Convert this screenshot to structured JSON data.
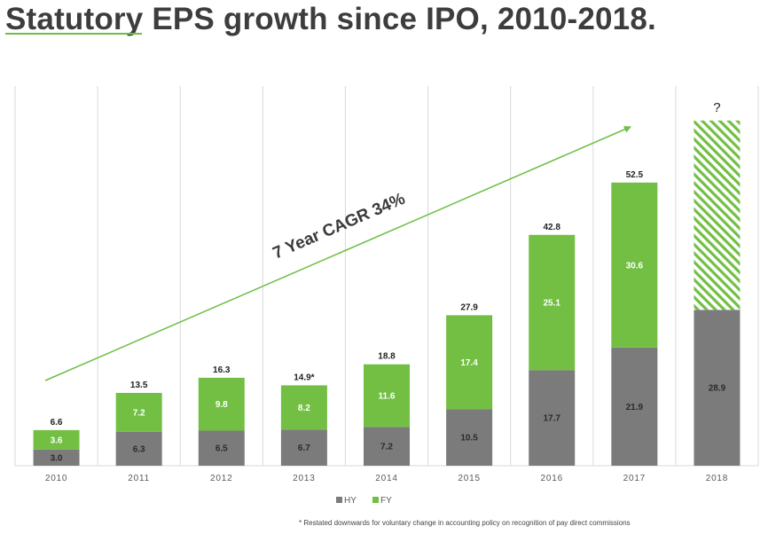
{
  "page": {
    "title": "Statutory EPS growth since IPO, 2010-2018.",
    "footnote": "* Restated downwards for voluntary change in accounting policy on recognition of pay direct commissions"
  },
  "colors": {
    "hy": "#7b7b7b",
    "fy": "#72bf44",
    "accent": "#6cbf45",
    "grid": "#d9d9d9"
  },
  "chart_data": {
    "type": "bar",
    "stacked": true,
    "categories": [
      "2010",
      "2011",
      "2012",
      "2013",
      "2014",
      "2015",
      "2016",
      "2017",
      "2018"
    ],
    "series": [
      {
        "name": "HY",
        "values": [
          3.0,
          6.3,
          6.5,
          6.7,
          7.2,
          10.5,
          17.7,
          21.9,
          28.9
        ],
        "labels": [
          "3.0",
          "6.3",
          "6.5",
          "6.7",
          "7.2",
          "10.5",
          "17.7",
          "21.9",
          "28.9"
        ]
      },
      {
        "name": "FY",
        "values": [
          3.6,
          7.2,
          9.8,
          8.2,
          11.6,
          17.4,
          25.1,
          30.6,
          null
        ],
        "labels": [
          "3.6",
          "7.2",
          "9.8",
          "8.2",
          "11.6",
          "17.4",
          "25.1",
          "30.6",
          ""
        ]
      }
    ],
    "totals": [
      "6.6",
      "13.5",
      "16.3",
      "14.9*",
      "18.8",
      "27.9",
      "42.8",
      "52.5",
      "?"
    ],
    "pending": {
      "category": "2018",
      "series": "FY",
      "top_value": 64,
      "pattern": "hatched"
    },
    "ylim": [
      0,
      70
    ],
    "grid": "vertical",
    "legend_position": "bottom",
    "annotation": "7 Year CAGR 34%"
  }
}
